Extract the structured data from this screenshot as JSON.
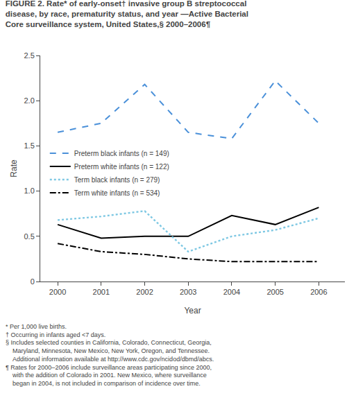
{
  "chart_data": {
    "type": "line",
    "title": [
      "FIGURE 2. Rate* of early-onset† invasive group B streptococcal",
      "disease, by race, prematurity status, and year —Active Bacterial",
      "Core surveillance system, United States,§ 2000–2006¶"
    ],
    "xlabel": "Year",
    "ylabel": "Rate",
    "x": [
      2000,
      2001,
      2002,
      2003,
      2004,
      2005,
      2006
    ],
    "series": [
      {
        "name": "Preterm black infants (n = 149)",
        "color": "#4a90d9",
        "line_style": "dashed",
        "values": [
          1.65,
          1.75,
          2.18,
          1.65,
          1.58,
          2.22,
          1.75
        ]
      },
      {
        "name": "Preterm white infants (n = 122)",
        "color": "#000000",
        "line_style": "solid",
        "values": [
          0.63,
          0.48,
          0.5,
          0.5,
          0.73,
          0.63,
          0.82
        ]
      },
      {
        "name": "Term black infants (n = 279)",
        "color": "#7ec8e3",
        "line_style": "dotted",
        "values": [
          0.68,
          0.72,
          0.78,
          0.33,
          0.5,
          0.57,
          0.7
        ]
      },
      {
        "name": "Term white infants (n = 534)",
        "color": "#000000",
        "line_style": "dashdot",
        "values": [
          0.42,
          0.33,
          0.3,
          0.25,
          0.22,
          0.22,
          0.22
        ]
      }
    ],
    "xlim": [
      1999.6,
      2006.6
    ],
    "xticks": [
      2000,
      2001,
      2002,
      2003,
      2004,
      2005,
      2006
    ],
    "ylim": [
      0,
      2.5
    ],
    "yticks": [
      0,
      0.5,
      {
        "value": 1.0,
        "label": "1.0"
      },
      1.5,
      {
        "value": 2.0,
        "label": "2.0"
      },
      2.5
    ],
    "grid": false,
    "legend": "center left",
    "annotations": [
      "* Per 1,000 live births.",
      "† Occurring in infants aged <7 days.",
      "§ Includes selected counties in California, Colorado, Connecticut, Georgia,",
      "  Maryland, Minnesota, New Mexico, New York, Oregon, and Tennessee.",
      "  Additional information available at http://www.cdc.gov/ncidod/dbmd/abcs.",
      "¶ Rates for 2000–2006 include surveillance areas participating since 2000,",
      "  with the addition of Colorado in 2001. New Mexico, where surveillance",
      "  began in 2004, is not included in comparison of incidence over time."
    ]
  }
}
